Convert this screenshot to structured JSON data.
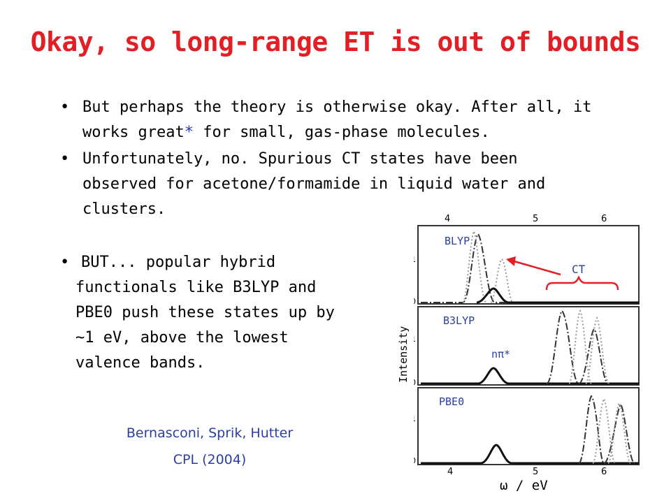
{
  "title": "Okay, so long-range ET is out of bounds",
  "bullets": {
    "b1_line1": "But perhaps the theory is otherwise okay.  After all, it",
    "b1_line2_a": "works great",
    "b1_line2_star": "*",
    "b1_line2_b": " for small, gas-phase molecules.",
    "b2_line1": "Unfortunately, no.  Spurious CT states have been",
    "b2_line2": "observed for acetone/formamide in liquid water and",
    "b2_line3": "clusters.",
    "b3_line1": "BUT... popular hybrid",
    "b3_line2": "functionals like B3LYP and",
    "b3_line3": "PBE0 push these states up by",
    "b3_line4": "~1 eV, above the lowest",
    "b3_line5": "valence bands."
  },
  "citation": {
    "authors": "Bernasconi, Sprik, Hutter",
    "journal": "CPL (2004)"
  },
  "figure": {
    "panel_labels": [
      "BLYP",
      "B3LYP",
      "PBE0"
    ],
    "ct_label": "CT",
    "npi_label": "nπ*",
    "ylabel": "Intensity",
    "xlabel": "ω / eV",
    "x_ticks": [
      "4",
      "5",
      "6"
    ],
    "y_ticks": [
      "1",
      "0"
    ],
    "colors": {
      "title": "#e31e25",
      "accent": "#e31e25",
      "label": "#2a3fa0"
    }
  }
}
